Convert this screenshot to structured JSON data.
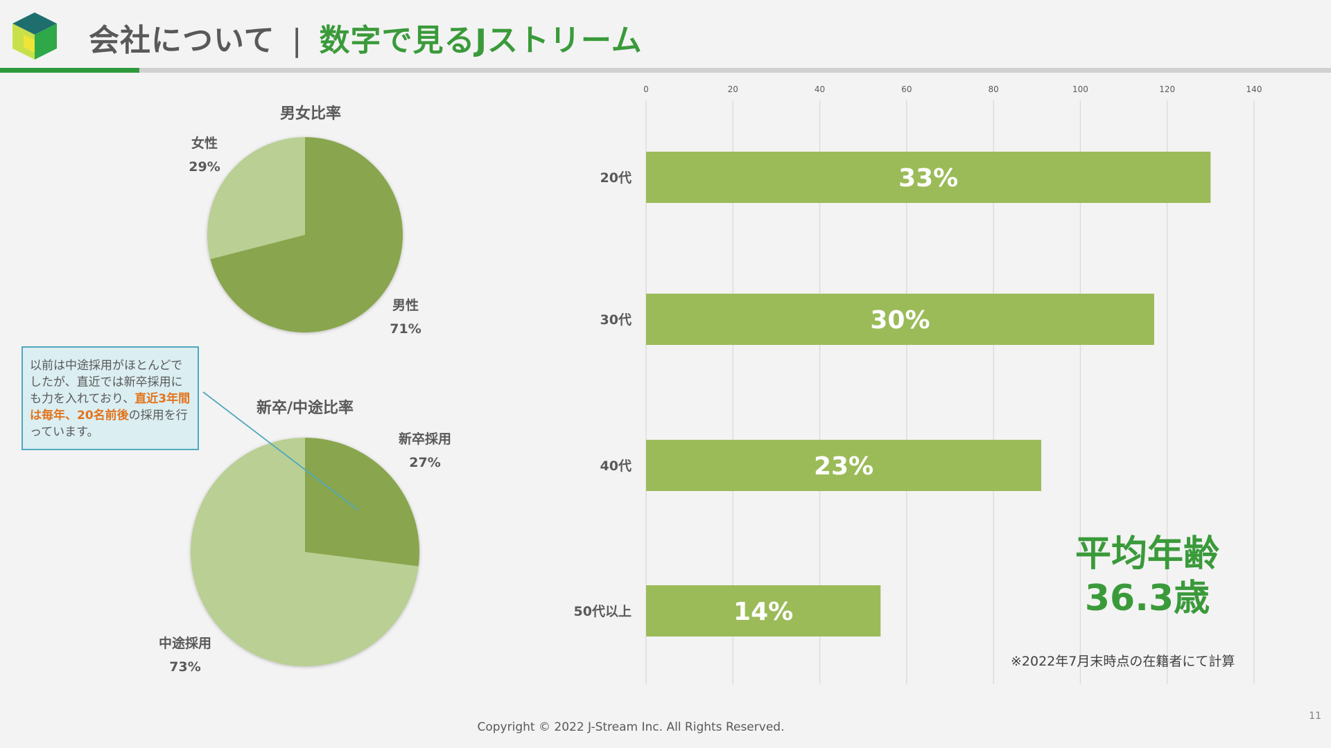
{
  "header": {
    "section": "会社について",
    "separator": "|",
    "topic": "数字で見るJストリーム"
  },
  "colors": {
    "accent_green": "#2e9a3c",
    "bar_green": "#9bbb59",
    "pie_dark": "#89a54e",
    "pie_light": "#b9cf93",
    "callout_border": "#4fa8be",
    "highlight_orange": "#e2741b"
  },
  "gender_pie": {
    "title": "男女比率",
    "slices": [
      {
        "label": "男性",
        "pct_label": "71%",
        "value": 71,
        "color": "#89a54e"
      },
      {
        "label": "女性",
        "pct_label": "29%",
        "value": 29,
        "color": "#b9cf93"
      }
    ]
  },
  "hire_pie": {
    "title": "新卒/中途比率",
    "slices": [
      {
        "label": "新卒採用",
        "pct_label": "27%",
        "value": 27,
        "color": "#89a54e"
      },
      {
        "label": "中途採用",
        "pct_label": "73%",
        "value": 73,
        "color": "#b9cf93"
      }
    ]
  },
  "callout": {
    "text_1": "以前は中途採用がほとんどでしたが、直近では新卒採用にも力を入れており、",
    "highlight": "直近3年間は毎年、20名前後",
    "text_2": "の採用を行っています。"
  },
  "chart_data": {
    "type": "bar",
    "orientation": "horizontal",
    "categories": [
      "20代",
      "30代",
      "40代",
      "50代以上"
    ],
    "values": [
      130,
      117,
      91,
      54
    ],
    "data_labels": [
      "33%",
      "30%",
      "23%",
      "14%"
    ],
    "xlim": [
      0,
      140
    ],
    "xticks": [
      0,
      20,
      40,
      60,
      80,
      100,
      120,
      140
    ],
    "grid": true,
    "color": "#9bbb59"
  },
  "average_age": {
    "line1": "平均年齢",
    "line2": "36.3歳"
  },
  "footnote": "※2022年7月末時点の在籍者にて計算",
  "copyright": "Copyright © 2022 J-Stream Inc. All Rights Reserved.",
  "page_number": "11"
}
